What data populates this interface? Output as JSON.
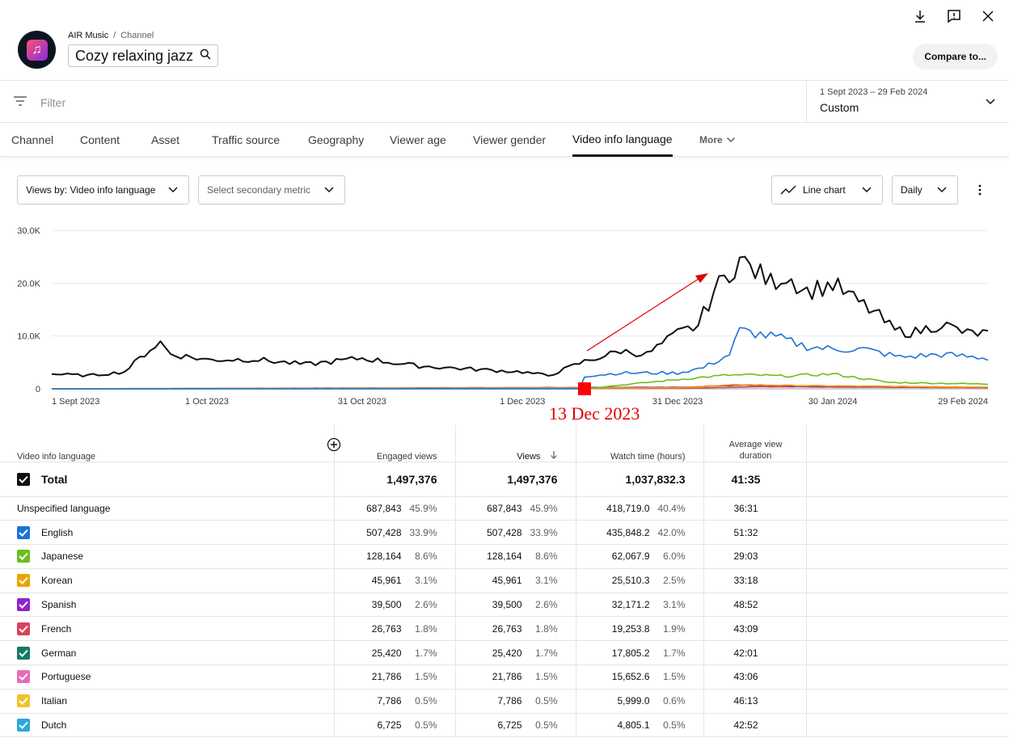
{
  "header": {
    "breadcrumb_channel": "AIR Music",
    "breadcrumb_sep": "/",
    "breadcrumb_section": "Channel",
    "title": "Cozy relaxing jazz",
    "compare_label": "Compare to..."
  },
  "filter": {
    "placeholder": "Filter"
  },
  "date_range": {
    "range": "1 Sept 2023 – 29 Feb 2024",
    "preset": "Custom"
  },
  "tabs": [
    "Channel",
    "Content",
    "Asset",
    "Traffic source",
    "Geography",
    "Viewer age",
    "Viewer gender",
    "Video info language",
    "More"
  ],
  "active_tab": "Video info language",
  "controls": {
    "primary_metric": "Views by: Video info language",
    "secondary_metric": "Select secondary metric",
    "chart_type": "Line chart",
    "granularity": "Daily"
  },
  "annotation": {
    "text": "13 Dec 2023",
    "color": "#e00000"
  },
  "chart_data": {
    "type": "line",
    "y_ticks": [
      "30.0K",
      "20.0K",
      "10.0K",
      "0"
    ],
    "ylim": [
      0,
      30000
    ],
    "x_ticks": [
      "1 Sept 2023",
      "1 Oct 2023",
      "31 Oct 2023",
      "1 Dec 2023",
      "31 Dec 2023",
      "30 Jan 2024",
      "29 Feb 2024"
    ],
    "series": [
      {
        "name": "Total",
        "color": "#0f0f0f",
        "x": [
          "2023-09-01",
          "2023-09-08",
          "2023-09-15",
          "2023-09-20",
          "2023-09-22",
          "2023-09-24",
          "2023-10-01",
          "2023-10-10",
          "2023-10-20",
          "2023-10-31",
          "2023-11-10",
          "2023-11-20",
          "2023-12-01",
          "2023-12-06",
          "2023-12-13",
          "2023-12-16",
          "2023-12-20",
          "2023-12-25",
          "2023-12-31",
          "2024-01-04",
          "2024-01-07",
          "2024-01-10",
          "2024-01-12",
          "2024-01-14",
          "2024-01-18",
          "2024-01-21",
          "2024-01-25",
          "2024-01-30",
          "2024-02-03",
          "2024-02-07",
          "2024-02-11",
          "2024-02-15",
          "2024-02-20",
          "2024-02-25",
          "2024-02-29"
        ],
        "values": [
          2800,
          2500,
          3200,
          7500,
          8800,
          6600,
          5500,
          5600,
          4600,
          5800,
          4400,
          3800,
          3200,
          2500,
          5200,
          6000,
          7200,
          6500,
          10500,
          12000,
          18500,
          22000,
          24500,
          23000,
          20200,
          21500,
          18500,
          19800,
          17000,
          14500,
          11000,
          10700,
          12300,
          10500,
          10500
        ]
      },
      {
        "name": "English",
        "color": "#1c73d4",
        "x": [
          "2023-09-01",
          "2023-12-12",
          "2023-12-13",
          "2023-12-20",
          "2023-12-31",
          "2024-01-05",
          "2024-01-10",
          "2024-01-12",
          "2024-01-15",
          "2024-01-20",
          "2024-01-25",
          "2024-01-30",
          "2024-02-05",
          "2024-02-12",
          "2024-02-20",
          "2024-02-29"
        ],
        "values": [
          0,
          0,
          2400,
          3000,
          3000,
          4000,
          6500,
          11000,
          10500,
          9500,
          8000,
          7500,
          7500,
          6000,
          6500,
          5800
        ]
      },
      {
        "name": "Japanese",
        "color": "#6bbf1e",
        "x": [
          "2023-09-01",
          "2023-12-13",
          "2023-12-25",
          "2024-01-05",
          "2024-01-10",
          "2024-01-15",
          "2024-01-20",
          "2024-01-30",
          "2024-02-10",
          "2024-02-29"
        ],
        "values": [
          0,
          0,
          1200,
          2200,
          2600,
          2600,
          2400,
          2800,
          1200,
          900
        ]
      },
      {
        "name": "Korean",
        "color": "#e8a400",
        "x": [
          "2023-09-01",
          "2024-01-01",
          "2024-01-12",
          "2024-01-25",
          "2024-02-29"
        ],
        "values": [
          0,
          200,
          800,
          600,
          300
        ]
      },
      {
        "name": "Spanish",
        "color": "#8e24c9",
        "x": [
          "2023-09-01",
          "2024-01-01",
          "2024-01-12",
          "2024-01-25",
          "2024-02-29"
        ],
        "values": [
          0,
          300,
          700,
          500,
          300
        ]
      },
      {
        "name": "French",
        "color": "#d8435a",
        "x": [
          "2023-09-01",
          "2024-01-01",
          "2024-01-15",
          "2024-02-29"
        ],
        "values": [
          0,
          100,
          400,
          200
        ]
      }
    ]
  },
  "table": {
    "headers": {
      "dimension": "Video info language",
      "engaged": "Engaged views",
      "views": "Views",
      "watch": "Watch time (hours)",
      "avg": "Average view duration"
    },
    "total": {
      "label": "Total",
      "engaged": "1,497,376",
      "views": "1,497,376",
      "watch": "1,037,832.3",
      "avg": "41:35"
    },
    "rows": [
      {
        "label": "Unspecified language",
        "color": "",
        "engaged": "687,843",
        "engaged_pct": "45.9%",
        "views": "687,843",
        "views_pct": "45.9%",
        "watch": "418,719.0",
        "watch_pct": "40.4%",
        "avg": "36:31"
      },
      {
        "label": "English",
        "color": "#1c73d4",
        "engaged": "507,428",
        "engaged_pct": "33.9%",
        "views": "507,428",
        "views_pct": "33.9%",
        "watch": "435,848.2",
        "watch_pct": "42.0%",
        "avg": "51:32"
      },
      {
        "label": "Japanese",
        "color": "#6bbf1e",
        "engaged": "128,164",
        "engaged_pct": "8.6%",
        "views": "128,164",
        "views_pct": "8.6%",
        "watch": "62,067.9",
        "watch_pct": "6.0%",
        "avg": "29:03"
      },
      {
        "label": "Korean",
        "color": "#e8a400",
        "engaged": "45,961",
        "engaged_pct": "3.1%",
        "views": "45,961",
        "views_pct": "3.1%",
        "watch": "25,510.3",
        "watch_pct": "2.5%",
        "avg": "33:18"
      },
      {
        "label": "Spanish",
        "color": "#8e24c9",
        "engaged": "39,500",
        "engaged_pct": "2.6%",
        "views": "39,500",
        "views_pct": "2.6%",
        "watch": "32,171.2",
        "watch_pct": "3.1%",
        "avg": "48:52"
      },
      {
        "label": "French",
        "color": "#d8435a",
        "engaged": "26,763",
        "engaged_pct": "1.8%",
        "views": "26,763",
        "views_pct": "1.8%",
        "watch": "19,253.8",
        "watch_pct": "1.9%",
        "avg": "43:09"
      },
      {
        "label": "German",
        "color": "#137a63",
        "engaged": "25,420",
        "engaged_pct": "1.7%",
        "views": "25,420",
        "views_pct": "1.7%",
        "watch": "17,805.2",
        "watch_pct": "1.7%",
        "avg": "42:01"
      },
      {
        "label": "Portuguese",
        "color": "#e86bb8",
        "engaged": "21,786",
        "engaged_pct": "1.5%",
        "views": "21,786",
        "views_pct": "1.5%",
        "watch": "15,652.6",
        "watch_pct": "1.5%",
        "avg": "43:06"
      },
      {
        "label": "Italian",
        "color": "#f2c12e",
        "engaged": "7,786",
        "engaged_pct": "0.5%",
        "views": "7,786",
        "views_pct": "0.5%",
        "watch": "5,999.0",
        "watch_pct": "0.6%",
        "avg": "46:13"
      },
      {
        "label": "Dutch",
        "color": "#2ea8d8",
        "engaged": "6,725",
        "engaged_pct": "0.5%",
        "views": "6,725",
        "views_pct": "0.5%",
        "watch": "4,805.1",
        "watch_pct": "0.5%",
        "avg": "42:52"
      }
    ]
  }
}
